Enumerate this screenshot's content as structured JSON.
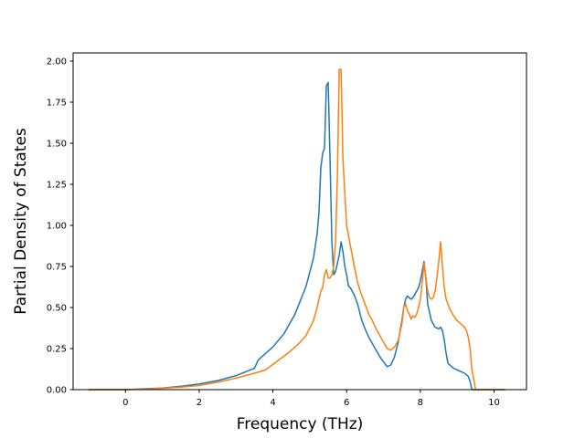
{
  "chart_data": {
    "type": "line",
    "xlabel": "Frequency (THz)",
    "ylabel": "Partial Density of States",
    "xlim": [
      -1.42,
      10.88
    ],
    "ylim": [
      0.0,
      2.05
    ],
    "xticks": [
      0,
      2,
      4,
      6,
      8,
      10
    ],
    "xtick_labels": [
      "0",
      "2",
      "4",
      "6",
      "8",
      "10"
    ],
    "yticks": [
      0.0,
      0.25,
      0.5,
      0.75,
      1.0,
      1.25,
      1.5,
      1.75,
      2.0
    ],
    "ytick_labels": [
      "0.00",
      "0.25",
      "0.50",
      "0.75",
      "1.00",
      "1.25",
      "1.50",
      "1.75",
      "2.00"
    ],
    "grid": false,
    "series": [
      {
        "color": "#1f77b4",
        "x": [
          -1.0,
          0.0,
          0.5,
          1.0,
          1.5,
          2.0,
          2.5,
          3.0,
          3.5,
          3.6,
          4.0,
          4.3,
          4.6,
          4.9,
          5.1,
          5.2,
          5.25,
          5.3,
          5.35,
          5.4,
          5.45,
          5.5,
          5.55,
          5.6,
          5.65,
          5.7,
          5.75,
          5.8,
          5.85,
          5.9,
          5.95,
          6.0,
          6.05,
          6.1,
          6.2,
          6.3,
          6.4,
          6.5,
          6.6,
          6.7,
          6.8,
          6.9,
          7.0,
          7.1,
          7.2,
          7.3,
          7.4,
          7.5,
          7.55,
          7.6,
          7.65,
          7.7,
          7.75,
          7.8,
          7.85,
          7.9,
          7.95,
          8.0,
          8.05,
          8.1,
          8.15,
          8.2,
          8.3,
          8.4,
          8.5,
          8.55,
          8.6,
          8.65,
          8.7,
          8.75,
          8.8,
          8.9,
          9.0,
          9.1,
          9.2,
          9.3,
          9.35,
          9.4,
          9.5,
          10.0,
          10.3
        ],
        "y": [
          0.0,
          0.0,
          0.005,
          0.01,
          0.02,
          0.035,
          0.055,
          0.085,
          0.13,
          0.18,
          0.26,
          0.34,
          0.46,
          0.63,
          0.8,
          0.95,
          1.08,
          1.35,
          1.44,
          1.47,
          1.85,
          1.87,
          1.4,
          0.9,
          0.7,
          0.72,
          0.77,
          0.82,
          0.9,
          0.84,
          0.75,
          0.7,
          0.63,
          0.62,
          0.58,
          0.52,
          0.43,
          0.37,
          0.32,
          0.28,
          0.24,
          0.2,
          0.17,
          0.14,
          0.15,
          0.2,
          0.29,
          0.42,
          0.5,
          0.55,
          0.57,
          0.56,
          0.55,
          0.56,
          0.58,
          0.6,
          0.62,
          0.66,
          0.72,
          0.78,
          0.68,
          0.52,
          0.42,
          0.38,
          0.37,
          0.38,
          0.36,
          0.3,
          0.22,
          0.16,
          0.15,
          0.13,
          0.12,
          0.11,
          0.1,
          0.08,
          0.05,
          0.0,
          0.0,
          0.0,
          0.0
        ]
      },
      {
        "color": "#ff7f0e",
        "x": [
          -1.0,
          0.0,
          0.5,
          1.0,
          1.5,
          2.0,
          2.5,
          3.0,
          3.5,
          3.8,
          4.1,
          4.4,
          4.7,
          4.9,
          5.1,
          5.2,
          5.3,
          5.35,
          5.4,
          5.45,
          5.5,
          5.55,
          5.6,
          5.65,
          5.7,
          5.75,
          5.8,
          5.85,
          5.9,
          5.95,
          6.0,
          6.1,
          6.2,
          6.3,
          6.4,
          6.5,
          6.6,
          6.7,
          6.8,
          6.9,
          7.0,
          7.1,
          7.2,
          7.3,
          7.4,
          7.5,
          7.55,
          7.6,
          7.65,
          7.7,
          7.75,
          7.8,
          7.85,
          7.9,
          7.95,
          8.0,
          8.05,
          8.1,
          8.15,
          8.2,
          8.25,
          8.3,
          8.35,
          8.4,
          8.45,
          8.5,
          8.55,
          8.6,
          8.65,
          8.7,
          8.8,
          8.9,
          9.0,
          9.1,
          9.2,
          9.25,
          9.3,
          9.35,
          9.4,
          9.5,
          10.0,
          10.3
        ],
        "y": [
          0.0,
          0.0,
          0.003,
          0.008,
          0.015,
          0.025,
          0.045,
          0.07,
          0.1,
          0.12,
          0.17,
          0.22,
          0.28,
          0.33,
          0.42,
          0.5,
          0.6,
          0.62,
          0.7,
          0.73,
          0.68,
          0.68,
          0.7,
          0.75,
          0.9,
          1.3,
          1.95,
          1.95,
          1.4,
          1.2,
          1.0,
          0.88,
          0.76,
          0.65,
          0.58,
          0.52,
          0.46,
          0.42,
          0.37,
          0.33,
          0.29,
          0.25,
          0.24,
          0.26,
          0.3,
          0.4,
          0.5,
          0.52,
          0.48,
          0.46,
          0.43,
          0.45,
          0.44,
          0.46,
          0.5,
          0.55,
          0.65,
          0.77,
          0.68,
          0.6,
          0.56,
          0.55,
          0.56,
          0.6,
          0.68,
          0.78,
          0.9,
          0.75,
          0.62,
          0.55,
          0.49,
          0.45,
          0.42,
          0.4,
          0.38,
          0.36,
          0.32,
          0.25,
          0.12,
          0.0,
          0.0,
          0.0
        ]
      }
    ]
  }
}
